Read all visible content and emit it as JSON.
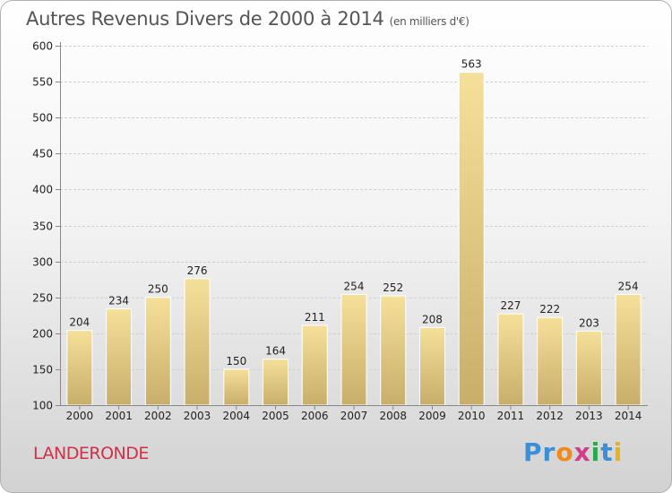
{
  "header": {
    "title": "Autres Revenus Divers de 2000 à 2014",
    "unit": "(en milliers d'€)"
  },
  "footer": {
    "commune": "LANDERONDE",
    "brand_letters": [
      "P",
      "r",
      "o",
      "x",
      "i",
      "t",
      "i"
    ],
    "brand_colors": [
      "#3a8fd8",
      "#3a8fd8",
      "#f08a1c",
      "#d23c8c",
      "#2aa84a",
      "#3a8fd8",
      "#e8b21a"
    ]
  },
  "colors": {
    "bar_top": "#f5e09a",
    "bar_bottom": "#c8ae6a",
    "grid": "#cfcfcf",
    "axis": "#888888"
  },
  "chart_data": {
    "type": "bar",
    "title": "Autres Revenus Divers de 2000 à 2014",
    "xlabel": "",
    "ylabel": "",
    "ylim": [
      100,
      600
    ],
    "yticks": [
      100,
      150,
      200,
      250,
      300,
      350,
      400,
      450,
      500,
      550,
      600
    ],
    "grid": true,
    "categories": [
      "2000",
      "2001",
      "2002",
      "2003",
      "2004",
      "2005",
      "2006",
      "2007",
      "2008",
      "2009",
      "2010",
      "2011",
      "2012",
      "2013",
      "2014"
    ],
    "values": [
      204,
      234,
      250,
      276,
      150,
      164,
      211,
      254,
      252,
      208,
      563,
      227,
      222,
      203,
      254
    ]
  }
}
